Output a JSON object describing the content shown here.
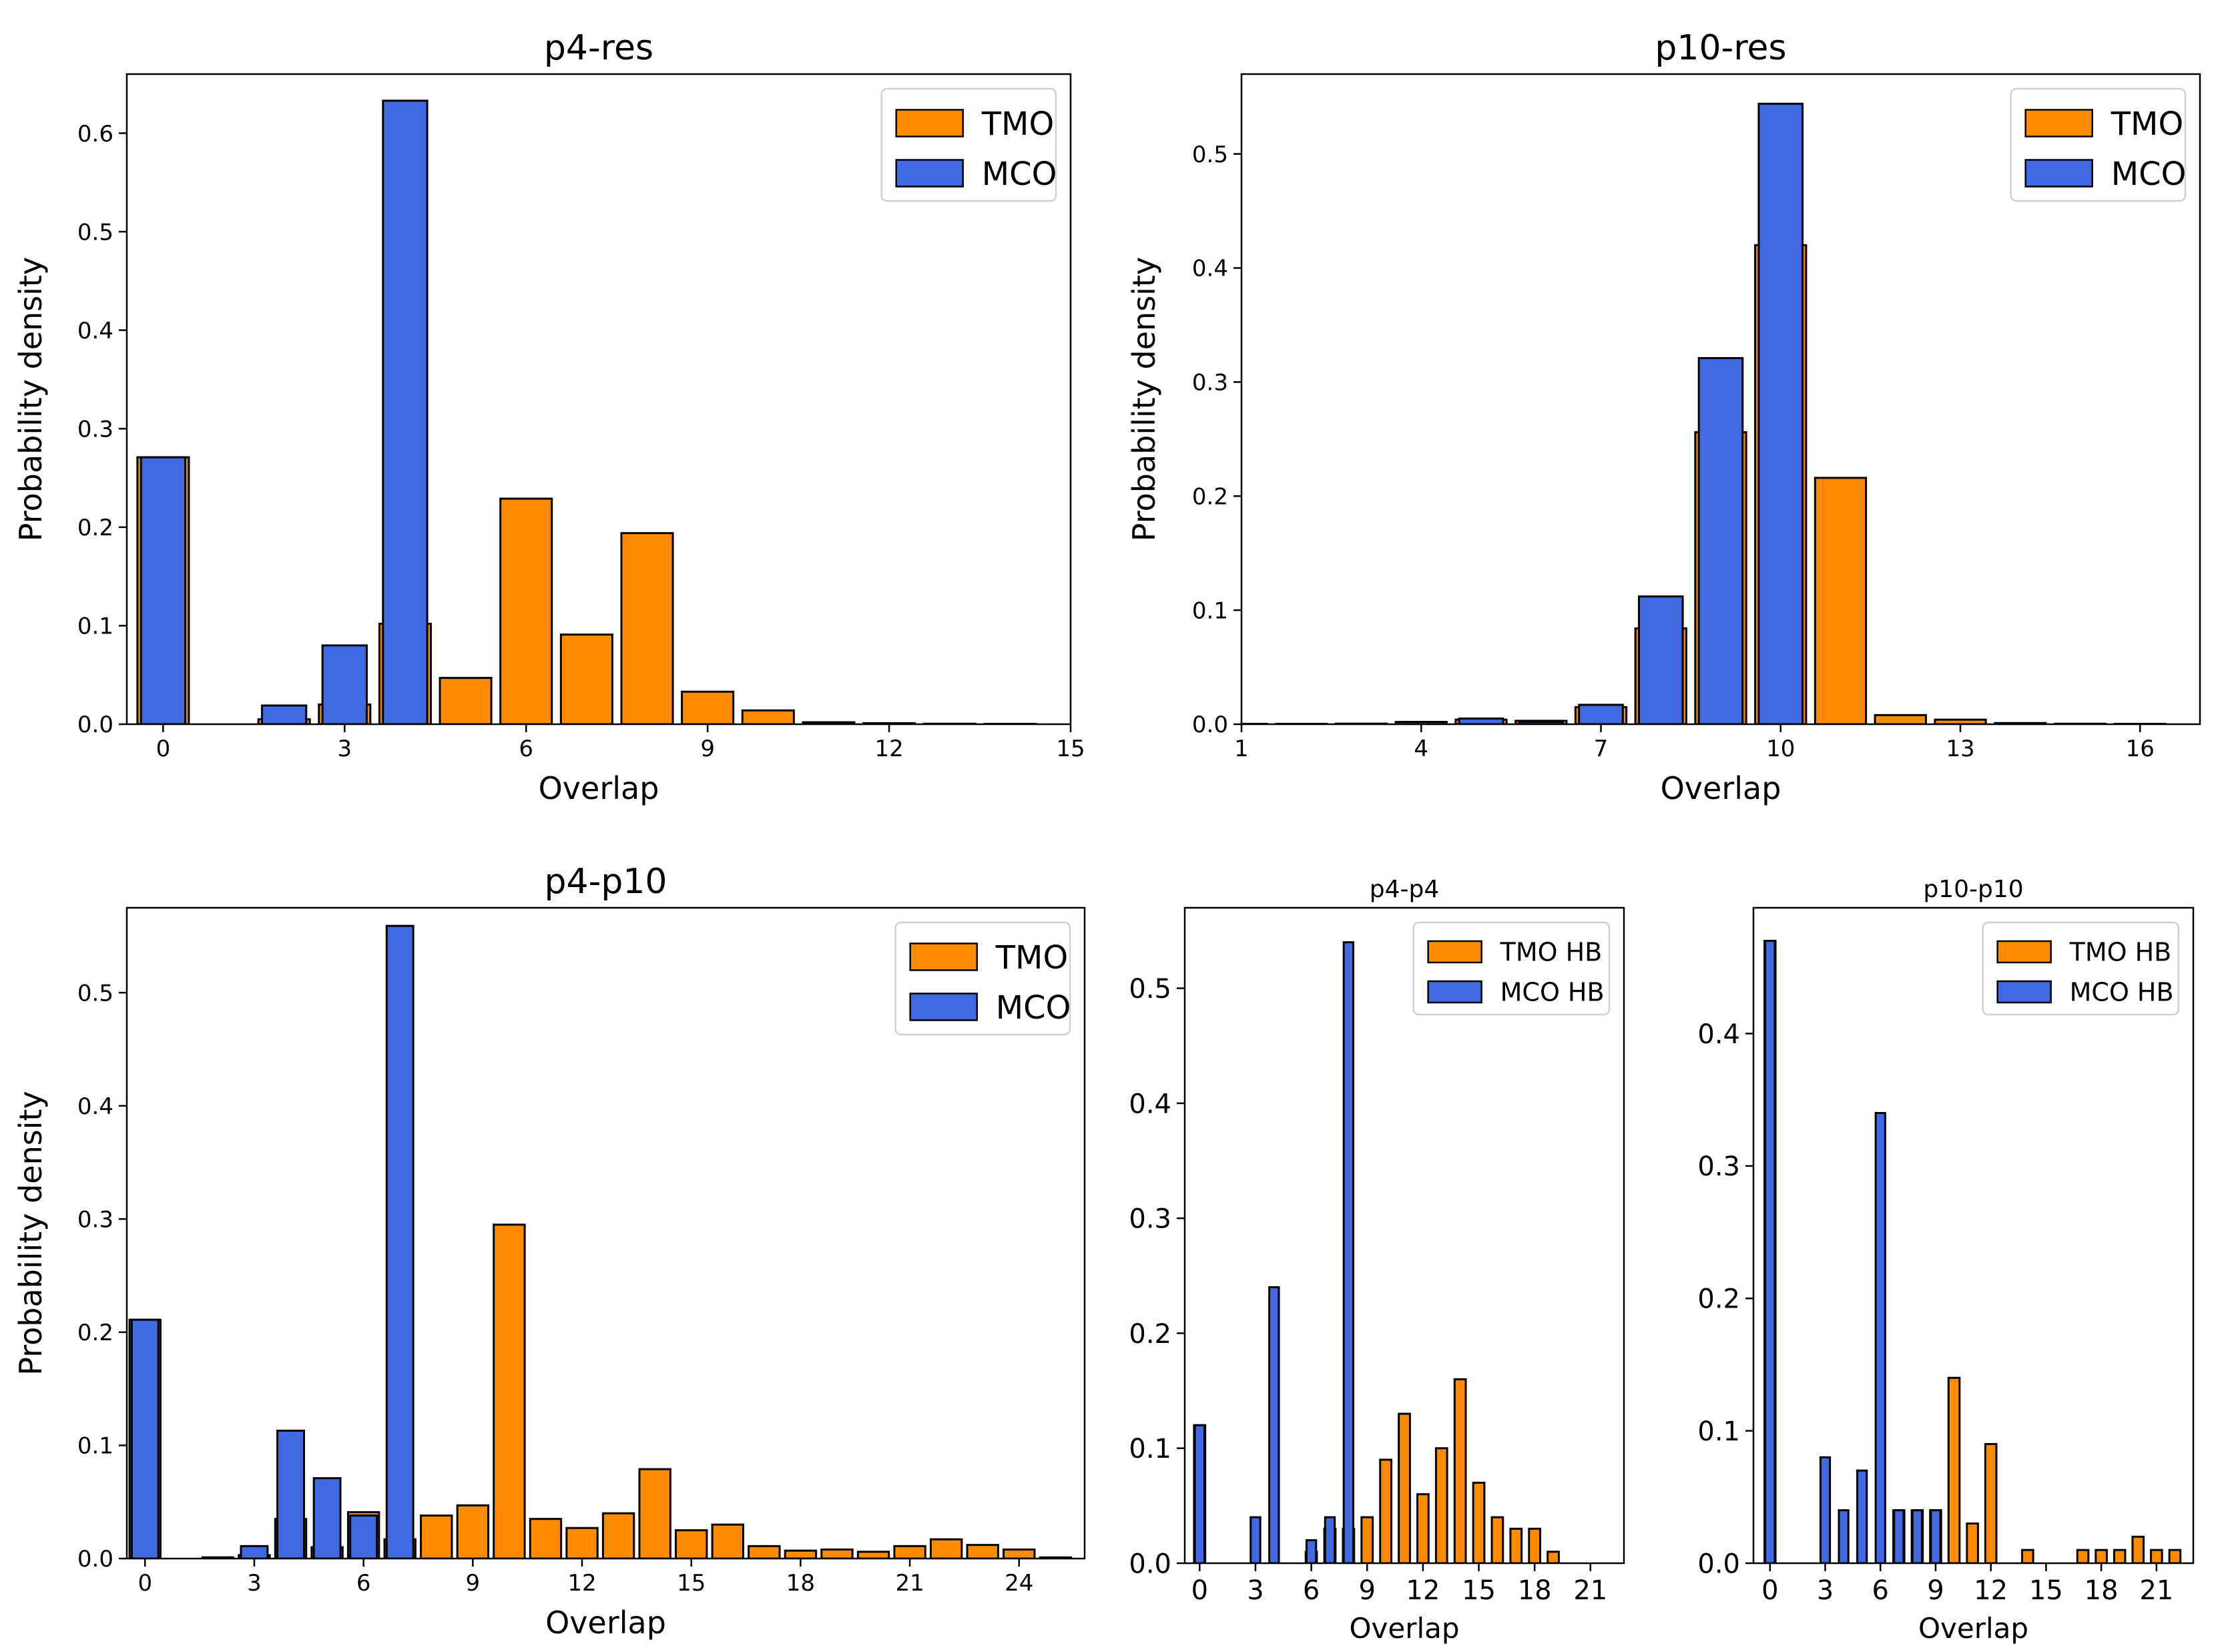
{
  "colors": {
    "tmo": "#ff8c00",
    "mco": "#4169e1",
    "edge": "#000000"
  },
  "chart_data": [
    {
      "type": "bar",
      "title": "p4-res",
      "xlabel": "Overlap",
      "ylabel": "Probability density",
      "xlim": [
        -0.6,
        15
      ],
      "ylim": [
        0,
        0.66
      ],
      "xticks": [
        0,
        3,
        6,
        9,
        12,
        15
      ],
      "yticks": [
        0.0,
        0.1,
        0.2,
        0.3,
        0.4,
        0.5,
        0.6
      ],
      "legend": [
        "TMO",
        "MCO"
      ],
      "legend_position": "top-right",
      "series": [
        {
          "name": "TMO",
          "x": [
            0,
            2,
            3,
            4,
            5,
            6,
            7,
            8,
            9,
            10,
            11,
            12,
            13,
            14
          ],
          "values": [
            0.271,
            0.005,
            0.02,
            0.102,
            0.047,
            0.229,
            0.091,
            0.194,
            0.033,
            0.014,
            0.002,
            0.001,
            0.0005,
            0.0003
          ]
        },
        {
          "name": "MCO",
          "x": [
            0,
            2,
            3,
            4
          ],
          "values": [
            0.271,
            0.019,
            0.08,
            0.633
          ]
        }
      ]
    },
    {
      "type": "bar",
      "title": "p10-res",
      "xlabel": "Overlap",
      "ylabel": "Probability density",
      "xlim": [
        1,
        17
      ],
      "ylim": [
        0,
        0.57
      ],
      "xticks": [
        1,
        4,
        7,
        10,
        13,
        16
      ],
      "yticks": [
        0.0,
        0.1,
        0.2,
        0.3,
        0.4,
        0.5
      ],
      "legend": [
        "TMO",
        "MCO"
      ],
      "legend_position": "top-right",
      "series": [
        {
          "name": "TMO",
          "x": [
            1,
            2,
            3,
            4,
            5,
            6,
            7,
            8,
            9,
            10,
            11,
            12,
            13,
            14,
            15,
            16
          ],
          "values": [
            0.0003,
            0.0003,
            0.0005,
            0.002,
            0.004,
            0.003,
            0.015,
            0.084,
            0.256,
            0.42,
            0.216,
            0.008,
            0.004,
            0.001,
            0.0004,
            0.0003
          ]
        },
        {
          "name": "MCO",
          "x": [
            4,
            5,
            6,
            7,
            8,
            9,
            10
          ],
          "values": [
            0.002,
            0.005,
            0.002,
            0.017,
            0.112,
            0.321,
            0.544
          ]
        }
      ]
    },
    {
      "type": "bar",
      "title": "p4-p10",
      "xlabel": "Overlap",
      "ylabel": "Probability density",
      "xlim": [
        -0.5,
        25.8
      ],
      "ylim": [
        0,
        0.575
      ],
      "xticks": [
        0,
        3,
        6,
        9,
        12,
        15,
        18,
        21,
        24
      ],
      "yticks": [
        0.0,
        0.1,
        0.2,
        0.3,
        0.4,
        0.5
      ],
      "legend": [
        "TMO",
        "MCO"
      ],
      "legend_position": "top-right",
      "series": [
        {
          "name": "TMO",
          "x": [
            0,
            2,
            3,
            4,
            5,
            6,
            7,
            8,
            9,
            10,
            11,
            12,
            13,
            14,
            15,
            16,
            17,
            18,
            19,
            20,
            21,
            22,
            23,
            24,
            25
          ],
          "values": [
            0.211,
            0.001,
            0.003,
            0.035,
            0.01,
            0.041,
            0.017,
            0.038,
            0.047,
            0.295,
            0.035,
            0.027,
            0.04,
            0.079,
            0.025,
            0.03,
            0.011,
            0.007,
            0.008,
            0.006,
            0.011,
            0.017,
            0.012,
            0.008,
            0.001
          ]
        },
        {
          "name": "MCO",
          "x": [
            0,
            2,
            3,
            4,
            5,
            6,
            7
          ],
          "values": [
            0.211,
            0.001,
            0.011,
            0.113,
            0.071,
            0.038,
            0.559
          ]
        }
      ]
    },
    {
      "type": "bar",
      "title": "p4-p4",
      "xlabel": "Overlap",
      "ylabel": "",
      "xlim": [
        -0.8,
        22.8
      ],
      "ylim": [
        0,
        0.57
      ],
      "xticks": [
        0,
        3,
        6,
        9,
        12,
        15,
        18,
        21
      ],
      "yticks": [
        0.0,
        0.1,
        0.2,
        0.3,
        0.4,
        0.5
      ],
      "legend": [
        "TMO HB",
        "MCO HB"
      ],
      "legend_position": "top-right",
      "series": [
        {
          "name": "TMO HB",
          "x": [
            0,
            6,
            7,
            8,
            9,
            10,
            11,
            12,
            13,
            14,
            15,
            16,
            17,
            18,
            19
          ],
          "values": [
            0.12,
            0.01,
            0.03,
            0.03,
            0.04,
            0.09,
            0.13,
            0.06,
            0.1,
            0.16,
            0.07,
            0.04,
            0.03,
            0.03,
            0.01
          ]
        },
        {
          "name": "MCO HB",
          "x": [
            0,
            3,
            4,
            6,
            7,
            8
          ],
          "values": [
            0.12,
            0.04,
            0.24,
            0.02,
            0.04,
            0.54
          ]
        }
      ]
    },
    {
      "type": "bar",
      "title": "p10-p10",
      "xlabel": "Overlap",
      "ylabel": "",
      "xlim": [
        -0.9,
        23.0
      ],
      "ylim": [
        0,
        0.495
      ],
      "xticks": [
        0,
        3,
        6,
        9,
        12,
        15,
        18,
        21
      ],
      "yticks": [
        0.0,
        0.1,
        0.2,
        0.3,
        0.4
      ],
      "legend": [
        "TMO HB",
        "MCO HB"
      ],
      "legend_position": "top-right",
      "series": [
        {
          "name": "TMO HB",
          "x": [
            0,
            7,
            8,
            9,
            10,
            11,
            12,
            14,
            17,
            18,
            19,
            20,
            21,
            22
          ],
          "values": [
            0.47,
            0.04,
            0.04,
            0.04,
            0.14,
            0.03,
            0.09,
            0.01,
            0.01,
            0.01,
            0.01,
            0.02,
            0.01,
            0.01
          ]
        },
        {
          "name": "MCO HB",
          "x": [
            0,
            3,
            4,
            5,
            6,
            7,
            8,
            9
          ],
          "values": [
            0.47,
            0.08,
            0.04,
            0.07,
            0.34,
            0.04,
            0.04,
            0.04
          ]
        }
      ]
    }
  ]
}
